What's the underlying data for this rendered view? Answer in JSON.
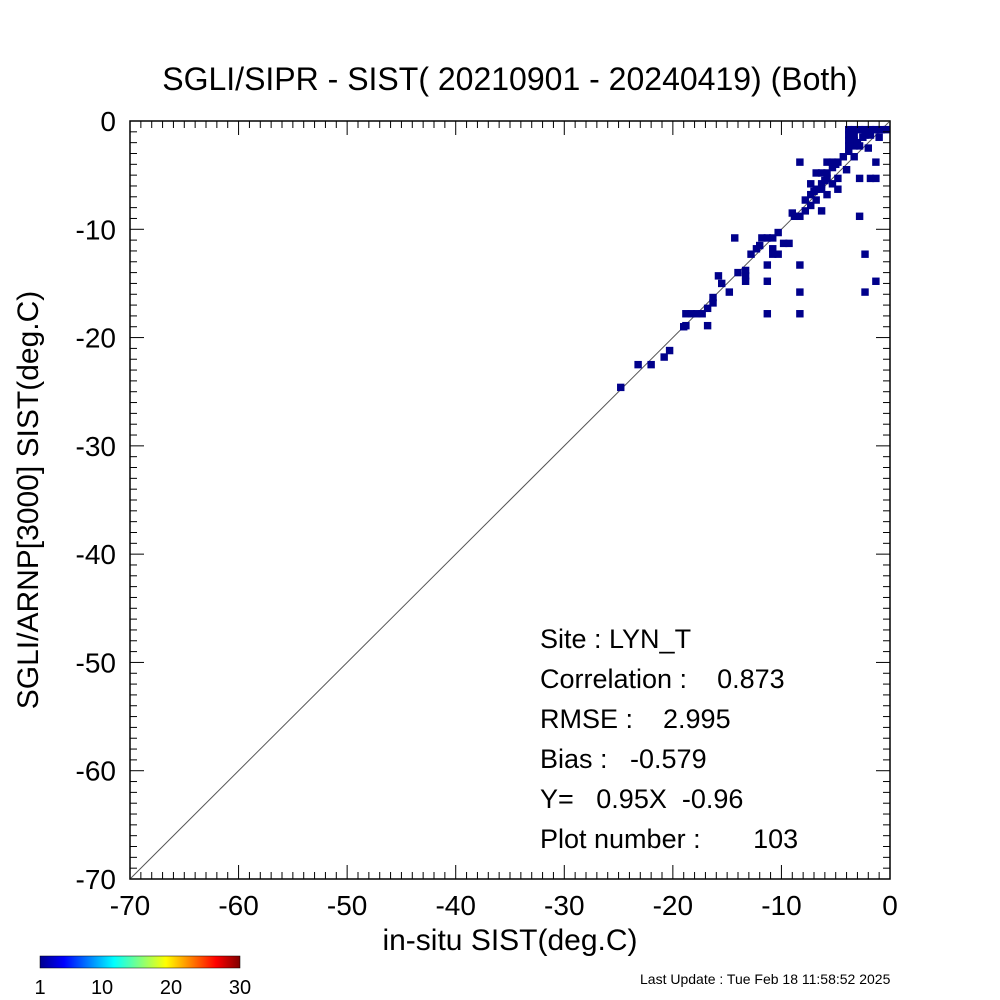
{
  "chart_data": {
    "type": "heatmap",
    "title": "SGLI/SIPR - SIST( 20210901 - 20240419) (Both)",
    "xlabel": "in-situ SIST(deg.C)",
    "ylabel": "SGLI/ARNP[3000]     SIST(deg.C)",
    "xlim": [
      -70,
      0
    ],
    "ylim": [
      -70,
      0
    ],
    "x_ticks": [
      -70,
      -60,
      -50,
      -40,
      -30,
      -20,
      -10,
      0
    ],
    "y_ticks": [
      -70,
      -60,
      -50,
      -40,
      -30,
      -20,
      -10,
      0
    ],
    "one_to_one_line": true,
    "bin_size": 0.5,
    "points": [
      [
        -24.8,
        -24.6
      ],
      [
        -23.2,
        -22.5
      ],
      [
        -22.0,
        -22.5
      ],
      [
        -20.8,
        -21.8
      ],
      [
        -20.3,
        -21.2
      ],
      [
        -18.8,
        -17.8
      ],
      [
        -18.3,
        -17.8
      ],
      [
        -17.8,
        -17.8
      ],
      [
        -17.3,
        -17.8
      ],
      [
        -16.8,
        -17.3
      ],
      [
        -18.8,
        -18.9
      ],
      [
        -16.8,
        -18.9
      ],
      [
        -16.3,
        -16.8
      ],
      [
        -16.3,
        -16.3
      ],
      [
        -15.8,
        -14.3
      ],
      [
        -14.8,
        -15.8
      ],
      [
        -14.3,
        -10.8
      ],
      [
        -13.3,
        -13.8
      ],
      [
        -13.3,
        -14.3
      ],
      [
        -13.3,
        -14.8
      ],
      [
        -12.8,
        -12.3
      ],
      [
        -12.3,
        -11.8
      ],
      [
        -11.8,
        -10.8
      ],
      [
        -11.3,
        -10.8
      ],
      [
        -10.8,
        -10.8
      ],
      [
        -11.3,
        -13.3
      ],
      [
        -11.3,
        -14.8
      ],
      [
        -11.3,
        -17.8
      ],
      [
        -10.8,
        -11.8
      ],
      [
        -10.8,
        -12.3
      ],
      [
        -10.3,
        -10.3
      ],
      [
        -10.3,
        -12.3
      ],
      [
        -9.8,
        -11.3
      ],
      [
        -9.3,
        -11.3
      ],
      [
        -8.8,
        -8.8
      ],
      [
        -8.3,
        -8.8
      ],
      [
        -8.3,
        -13.3
      ],
      [
        -8.3,
        -15.8
      ],
      [
        -8.3,
        -17.8
      ],
      [
        -8.3,
        -3.8
      ],
      [
        -7.8,
        -8.3
      ],
      [
        -7.8,
        -7.3
      ],
      [
        -7.3,
        -5.8
      ],
      [
        -7.3,
        -6.8
      ],
      [
        -7.3,
        -7.8
      ],
      [
        -6.8,
        -6.3
      ],
      [
        -6.8,
        -7.3
      ],
      [
        -6.8,
        -4.8
      ],
      [
        -6.3,
        -5.8
      ],
      [
        -6.3,
        -6.3
      ],
      [
        -6.3,
        -4.8
      ],
      [
        -6.3,
        -8.3
      ],
      [
        -5.8,
        -3.8
      ],
      [
        -5.8,
        -4.8
      ],
      [
        -5.8,
        -5.3
      ],
      [
        -5.8,
        -6.8
      ],
      [
        -5.3,
        -3.8
      ],
      [
        -5.3,
        -4.3
      ],
      [
        -5.3,
        -5.8
      ],
      [
        -4.8,
        -3.8
      ],
      [
        -4.8,
        -5.3
      ],
      [
        -4.8,
        -6.3
      ],
      [
        -3.8,
        -0.8
      ],
      [
        -3.8,
        -1.3
      ],
      [
        -3.8,
        -1.8
      ],
      [
        -3.8,
        -2.3
      ],
      [
        -3.8,
        -2.8
      ],
      [
        -3.3,
        -0.8
      ],
      [
        -3.3,
        -1.3
      ],
      [
        -3.3,
        -1.8
      ],
      [
        -3.3,
        -2.3
      ],
      [
        -3.3,
        -3.3
      ],
      [
        -2.8,
        -0.8
      ],
      [
        -2.8,
        -2.3
      ],
      [
        -2.8,
        -5.3
      ],
      [
        -2.8,
        -8.8
      ],
      [
        -2.3,
        -0.8
      ],
      [
        -2.3,
        -1.3
      ],
      [
        -2.3,
        -12.3
      ],
      [
        -2.3,
        -15.8
      ],
      [
        -1.8,
        -0.8
      ],
      [
        -1.8,
        -1.3
      ],
      [
        -1.8,
        -5.3
      ],
      [
        -1.3,
        -0.8
      ],
      [
        -1.3,
        -3.8
      ],
      [
        -1.3,
        -5.3
      ],
      [
        -1.3,
        -14.8
      ],
      [
        -0.8,
        -0.8
      ],
      [
        -0.3,
        -0.8
      ],
      [
        -3.0,
        -2.0
      ],
      [
        -2.5,
        -1.5
      ],
      [
        -4.3,
        -3.3
      ],
      [
        -6.0,
        -5.5
      ],
      [
        -7.0,
        -6.5
      ],
      [
        -9.0,
        -8.5
      ],
      [
        -12.0,
        -11.5
      ],
      [
        -15.5,
        -15.0
      ],
      [
        -19.0,
        -19.0
      ],
      [
        -14.0,
        -14.0
      ],
      [
        -4.0,
        -4.5
      ],
      [
        -5.0,
        -4.0
      ],
      [
        -2.0,
        -2.5
      ],
      [
        -1.0,
        -1.5
      ]
    ],
    "colorbar": {
      "min": 1,
      "max": 30,
      "ticks": [
        1,
        10,
        20,
        30
      ]
    },
    "colors": {
      "marker": "#00008b",
      "line": "#555555"
    }
  },
  "stats": {
    "site": "Site : LYN_T",
    "correlation": "Correlation :    0.873",
    "rmse": "RMSE :    2.995",
    "bias": "Bias :   -0.579",
    "fit": "Y=   0.95X  -0.96",
    "plot_number": "Plot number :       103"
  },
  "footer": {
    "last_update": "Last Update : Tue Feb 18 11:58:52 2025"
  }
}
